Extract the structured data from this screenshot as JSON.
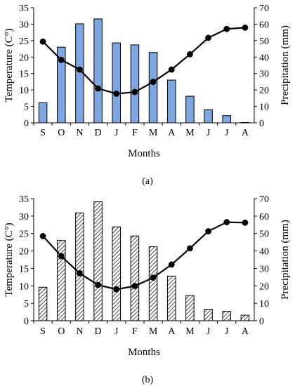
{
  "chart_data": [
    {
      "type": "bar",
      "caption": "(a)",
      "bar_style": "solid",
      "bar_color": "#7ea6e0",
      "line_color": "#000000",
      "categories": [
        "S",
        "O",
        "N",
        "D",
        "J",
        "F",
        "M",
        "A",
        "M",
        "J",
        "J",
        "A"
      ],
      "xlabel": "Months",
      "ylabel_left": "Temperature (C°)",
      "ylabel_right": "Precipitation (mm)",
      "ylim_left": [
        0,
        35
      ],
      "yticks_left": [
        "0",
        "5",
        "10",
        "15",
        "20",
        "25",
        "30",
        "35"
      ],
      "ylim_right": [
        0,
        70
      ],
      "yticks_right": [
        "0",
        "10",
        "20",
        "30",
        "40",
        "50",
        "60",
        "70"
      ],
      "grid": false,
      "series": [
        {
          "axis": "left",
          "kind": "bar",
          "values": [
            6.1,
            23.0,
            30.1,
            31.6,
            24.3,
            23.7,
            21.4,
            13.0,
            8.1,
            4.0,
            2.2,
            0.1
          ]
        },
        {
          "axis": "right",
          "kind": "line",
          "values": [
            49.4,
            38.3,
            32.4,
            20.9,
            17.7,
            18.7,
            24.9,
            32.4,
            41.7,
            51.7,
            57.1,
            57.9
          ]
        }
      ]
    },
    {
      "type": "bar",
      "caption": "(b)",
      "bar_style": "hatched",
      "bar_color": "#000000",
      "line_color": "#000000",
      "categories": [
        "S",
        "O",
        "N",
        "D",
        "J",
        "F",
        "M",
        "A",
        "M",
        "J",
        "J",
        "A"
      ],
      "xlabel": "Months",
      "ylabel_left": "Temperature (C°)",
      "ylabel_right": "Precipitation (mm)",
      "ylim_left": [
        0,
        35
      ],
      "yticks_left": [
        "0",
        "5",
        "10",
        "15",
        "20",
        "25",
        "30",
        "35"
      ],
      "ylim_right": [
        0,
        70
      ],
      "yticks_right": [
        "0",
        "10",
        "20",
        "30",
        "40",
        "50",
        "60",
        "70"
      ],
      "grid": false,
      "series": [
        {
          "axis": "left",
          "kind": "bar",
          "values": [
            9.6,
            23.0,
            30.9,
            34.1,
            26.9,
            24.3,
            21.2,
            12.8,
            7.2,
            3.3,
            2.7,
            1.6
          ]
        },
        {
          "axis": "right",
          "kind": "line",
          "values": [
            48.5,
            37.0,
            27.2,
            20.5,
            18.0,
            19.9,
            24.7,
            32.2,
            41.5,
            51.3,
            56.5,
            56.2
          ]
        }
      ]
    }
  ]
}
